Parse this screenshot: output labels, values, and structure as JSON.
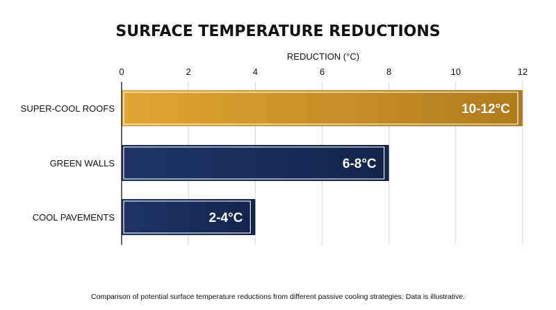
{
  "chart_data": {
    "type": "bar",
    "orientation": "horizontal",
    "title": "SURFACE TEMPERATURE REDUCTIONS",
    "xlabel": "REDUCTION (°C)",
    "ylabel": "",
    "xlim": [
      0,
      12
    ],
    "x_ticks": [
      "0",
      "2",
      "4",
      "6",
      "8",
      "10",
      "12"
    ],
    "x_axis_position": "top",
    "grid": true,
    "legend": "none",
    "categories": [
      "SUPER-COOL ROOFS",
      "GREEN WALLS",
      "COOL PAVEMENTS"
    ],
    "values": [
      12,
      8,
      4
    ],
    "data_labels": [
      "10-12°C",
      "6-8°C",
      "2-4°C"
    ],
    "colors": [
      "#d99a2b",
      "#1a2c58",
      "#1a2c58"
    ],
    "caption": "Comparison of potential surface temperature reductions from different passive cooling strategies. Data is illustrative."
  }
}
